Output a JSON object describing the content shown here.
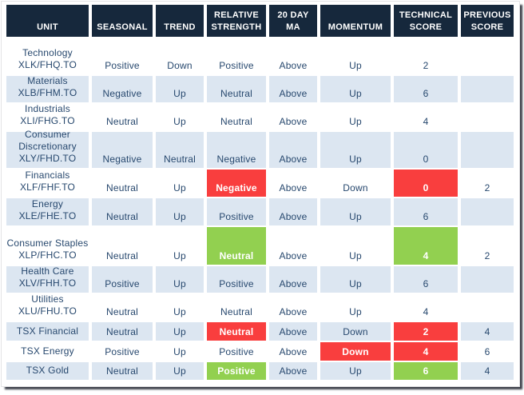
{
  "colors": {
    "header_bg": "#16283c",
    "text": "#27486e",
    "band_blue": "#dce6f1",
    "red": "#f93e3e",
    "green": "#92d050"
  },
  "table": {
    "columns": [
      {
        "label": "UNIT"
      },
      {
        "label": "SEASONAL"
      },
      {
        "label": "TREND"
      },
      {
        "label": "RELATIVE STRENGTH"
      },
      {
        "label": "20 DAY MA"
      },
      {
        "label": "MOMENTUM"
      },
      {
        "label": "TECHNICAL SCORE"
      },
      {
        "label": "PREVIOUS SCORE"
      }
    ],
    "rows": [
      {
        "band": "white",
        "unit_lines": [
          "Technology",
          "XLK/FHQ.TO"
        ],
        "cells": [
          {
            "text": "Positive"
          },
          {
            "text": "Down"
          },
          {
            "text": "Positive"
          },
          {
            "text": "Above"
          },
          {
            "text": "Up"
          },
          {
            "text": "2"
          },
          {
            "text": ""
          }
        ]
      },
      {
        "band": "blue",
        "unit_lines": [
          "Materials",
          "XLB/FHM.TO"
        ],
        "cells": [
          {
            "text": "Negative"
          },
          {
            "text": "Up"
          },
          {
            "text": "Neutral"
          },
          {
            "text": "Above"
          },
          {
            "text": "Up"
          },
          {
            "text": "6"
          },
          {
            "text": ""
          }
        ]
      },
      {
        "band": "white",
        "unit_lines": [
          "Industrials",
          "XLI/FHG.TO"
        ],
        "cells": [
          {
            "text": "Neutral"
          },
          {
            "text": "Up"
          },
          {
            "text": "Neutral"
          },
          {
            "text": "Above"
          },
          {
            "text": "Up"
          },
          {
            "text": "4"
          },
          {
            "text": ""
          }
        ]
      },
      {
        "band": "blue",
        "unit_lines": [
          "Consumer",
          "Discretionary",
          "XLY/FHD.TO"
        ],
        "cells": [
          {
            "text": "Negative"
          },
          {
            "text": "Neutral"
          },
          {
            "text": "Negative"
          },
          {
            "text": "Above"
          },
          {
            "text": "Up"
          },
          {
            "text": "0"
          },
          {
            "text": ""
          }
        ]
      },
      {
        "band": "white",
        "unit_lines": [
          "Financials",
          "XLF/FHF.TO"
        ],
        "cells": [
          {
            "text": "Neutral"
          },
          {
            "text": "Up"
          },
          {
            "text": "Negative",
            "fill": "red"
          },
          {
            "text": "Above"
          },
          {
            "text": "Down"
          },
          {
            "text": "0",
            "fill": "red"
          },
          {
            "text": "2"
          }
        ]
      },
      {
        "band": "blue",
        "unit_lines": [
          "Energy",
          "XLE/FHE.TO"
        ],
        "cells": [
          {
            "text": "Neutral"
          },
          {
            "text": "Up"
          },
          {
            "text": "Positive"
          },
          {
            "text": "Above"
          },
          {
            "text": "Up"
          },
          {
            "text": "6"
          },
          {
            "text": ""
          }
        ]
      },
      {
        "band": "white",
        "unit_lines": [
          "Consumer Staples",
          "XLP/FHC.TO"
        ],
        "cells": [
          {
            "text": "Neutral"
          },
          {
            "text": "Up"
          },
          {
            "text": "Neutral",
            "fill": "green"
          },
          {
            "text": "Above"
          },
          {
            "text": "Up"
          },
          {
            "text": "4",
            "fill": "green"
          },
          {
            "text": "2"
          }
        ]
      },
      {
        "band": "blue",
        "unit_lines": [
          "Health Care",
          "XLV/FHH.TO"
        ],
        "cells": [
          {
            "text": "Positive"
          },
          {
            "text": "Up"
          },
          {
            "text": "Positive"
          },
          {
            "text": "Above"
          },
          {
            "text": "Up"
          },
          {
            "text": "6"
          },
          {
            "text": ""
          }
        ]
      },
      {
        "band": "white",
        "unit_lines": [
          "Utilities",
          "XLU/FHU.TO"
        ],
        "cells": [
          {
            "text": "Neutral"
          },
          {
            "text": "Up"
          },
          {
            "text": "Neutral"
          },
          {
            "text": "Above"
          },
          {
            "text": "Up"
          },
          {
            "text": "4"
          },
          {
            "text": ""
          }
        ]
      },
      {
        "band": "blue",
        "unit_lines": [
          "TSX Financial"
        ],
        "cells": [
          {
            "text": "Neutral"
          },
          {
            "text": "Up"
          },
          {
            "text": "Neutral",
            "fill": "red"
          },
          {
            "text": "Above"
          },
          {
            "text": "Down"
          },
          {
            "text": "2",
            "fill": "red"
          },
          {
            "text": "4"
          }
        ]
      },
      {
        "band": "white",
        "unit_lines": [
          "TSX Energy"
        ],
        "cells": [
          {
            "text": "Positive"
          },
          {
            "text": "Up"
          },
          {
            "text": "Positive"
          },
          {
            "text": "Above"
          },
          {
            "text": "Down",
            "fill": "red"
          },
          {
            "text": "4",
            "fill": "red"
          },
          {
            "text": "6"
          }
        ]
      },
      {
        "band": "blue",
        "unit_lines": [
          "TSX Gold"
        ],
        "cells": [
          {
            "text": "Neutral"
          },
          {
            "text": "Up"
          },
          {
            "text": "Positive",
            "fill": "green"
          },
          {
            "text": "Above"
          },
          {
            "text": "Up"
          },
          {
            "text": "6",
            "fill": "green"
          },
          {
            "text": "4"
          }
        ]
      }
    ]
  }
}
